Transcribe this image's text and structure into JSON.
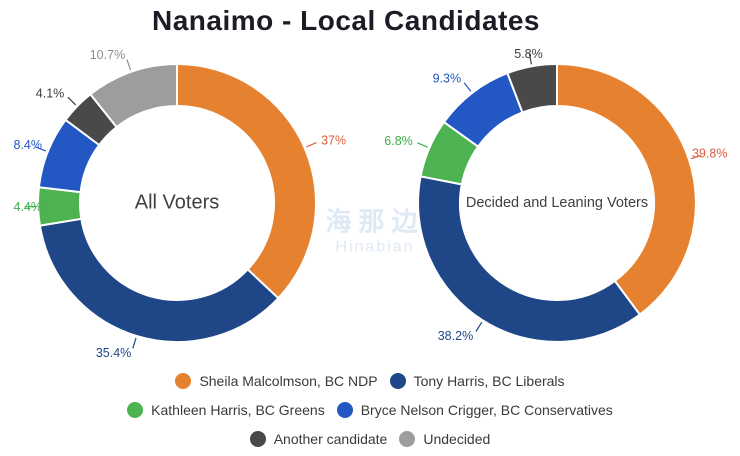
{
  "title": "Nanaimo - Local Candidates",
  "watermark": {
    "line1": "海那边",
    "line2": "Hinabian"
  },
  "colors": {
    "slices": {
      "ndp": "#E5812F",
      "liberal": "#1F4787",
      "green": "#4CB350",
      "conservative": "#2257C4",
      "another": "#494949",
      "undecided": "#9D9D9D"
    },
    "labels": {
      "ndp": "#E05A3C",
      "liberal": "#1F4787",
      "green": "#3FAE49",
      "conservative": "#2257C4",
      "another": "#3D3D3D",
      "undecided": "#8E8E8E"
    },
    "title_text": "#1C1C26",
    "center_text": "#404040",
    "legend_text": "#3A3A3A"
  },
  "chart_data": [
    {
      "type": "pie",
      "subtype": "donut",
      "center_label": "All Voters",
      "unit": "percent",
      "start_angle_deg": 0,
      "direction": "clockwise",
      "segments": [
        {
          "name": "Sheila Malcolmson, BC NDP",
          "value": 37.0,
          "label": "37%",
          "color_key": "ndp"
        },
        {
          "name": "Tony Harris, BC Liberals",
          "value": 35.4,
          "label": "35.4%",
          "color_key": "liberal"
        },
        {
          "name": "Kathleen Harris, BC Greens",
          "value": 4.4,
          "label": "4.4%",
          "color_key": "green"
        },
        {
          "name": "Bryce Nelson Crigger, BC Conservatives",
          "value": 8.4,
          "label": "8.4%",
          "color_key": "conservative"
        },
        {
          "name": "Another candidate",
          "value": 4.1,
          "label": "4.1%",
          "color_key": "another"
        },
        {
          "name": "Undecided",
          "value": 10.7,
          "label": "10.7%",
          "color_key": "undecided"
        }
      ]
    },
    {
      "type": "pie",
      "subtype": "donut",
      "center_label": "Decided and Leaning Voters",
      "unit": "percent",
      "start_angle_deg": 0,
      "direction": "clockwise",
      "segments": [
        {
          "name": "Sheila Malcolmson, BC NDP",
          "value": 39.8,
          "label": "39.8%",
          "color_key": "ndp"
        },
        {
          "name": "Tony Harris, BC Liberals",
          "value": 38.2,
          "label": "38.2%",
          "color_key": "liberal"
        },
        {
          "name": "Kathleen Harris, BC Greens",
          "value": 6.8,
          "label": "6.8%",
          "color_key": "green"
        },
        {
          "name": "Bryce Nelson Crigger, BC Conservatives",
          "value": 9.3,
          "label": "9.3%",
          "color_key": "conservative"
        },
        {
          "name": "Another candidate",
          "value": 5.8,
          "label": "5.8%",
          "color_key": "another"
        }
      ]
    }
  ],
  "legend": {
    "items": [
      {
        "label": "Sheila Malcolmson, BC NDP",
        "color_key": "ndp"
      },
      {
        "label": "Tony Harris, BC Liberals",
        "color_key": "liberal"
      },
      {
        "label": "Kathleen Harris, BC Greens",
        "color_key": "green"
      },
      {
        "label": "Bryce Nelson Crigger, BC Conservatives",
        "color_key": "conservative"
      },
      {
        "label": "Another candidate",
        "color_key": "another"
      },
      {
        "label": "Undecided",
        "color_key": "undecided"
      }
    ]
  }
}
